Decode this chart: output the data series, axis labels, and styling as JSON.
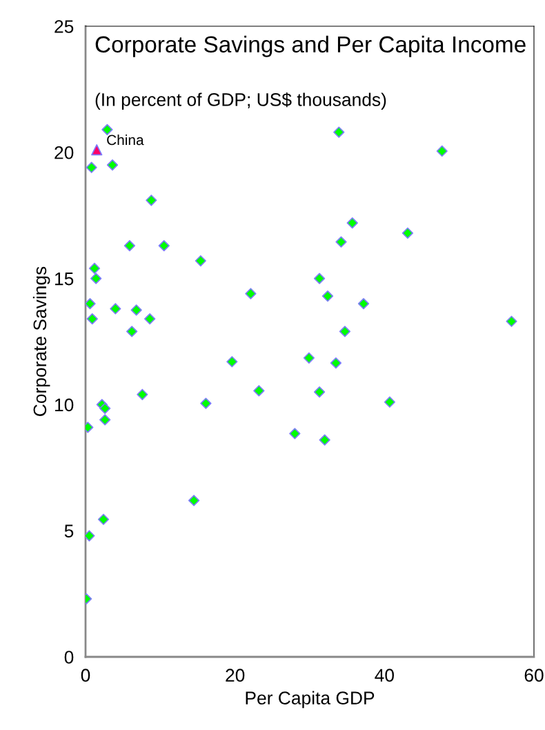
{
  "chart_data": {
    "type": "scatter",
    "title": "Corporate Savings and Per Capita Income",
    "subtitle": "(In percent of GDP; US$ thousands)",
    "xlabel": "Per Capita GDP",
    "ylabel": "Corporate Savings",
    "xlim": [
      0,
      60
    ],
    "xticks": [
      0,
      20,
      40,
      60
    ],
    "ylim": [
      0,
      25
    ],
    "yticks": [
      0,
      5,
      10,
      15,
      20,
      25
    ],
    "grid": false,
    "legend": false,
    "series": [
      {
        "color": "#00ff00",
        "marker": "diamond",
        "x": [
          2.9,
          0.8,
          3.6,
          8.8,
          5.9,
          10.5,
          1.2,
          1.4,
          15.4,
          0.6,
          0.9,
          4.0,
          6.8,
          8.6,
          6.2,
          7.6,
          19.6,
          22.1,
          23.2,
          16.1,
          2.2,
          2.6,
          2.6,
          0.3,
          14.5,
          2.4,
          0.5,
          0.1,
          33.9,
          47.7,
          35.7,
          34.2,
          43.1,
          31.3,
          32.4,
          37.2,
          57.0,
          34.7,
          29.9,
          33.5,
          31.3,
          40.7,
          28.0,
          32.0
        ],
        "values": [
          20.9,
          19.4,
          19.5,
          18.1,
          16.3,
          16.3,
          15.4,
          15.0,
          15.7,
          14.0,
          13.4,
          13.8,
          13.75,
          13.4,
          12.9,
          10.4,
          11.7,
          14.4,
          10.55,
          10.05,
          10.0,
          9.85,
          9.4,
          9.1,
          6.2,
          5.45,
          4.8,
          2.3,
          20.8,
          20.05,
          17.2,
          16.45,
          16.8,
          15.0,
          14.3,
          14.0,
          13.3,
          12.9,
          11.85,
          11.65,
          10.5,
          10.1,
          8.85,
          8.6
        ]
      },
      {
        "name": "China",
        "color": "#ff0066",
        "marker": "triangle",
        "x": [
          1.5
        ],
        "values": [
          20.1
        ]
      }
    ]
  }
}
